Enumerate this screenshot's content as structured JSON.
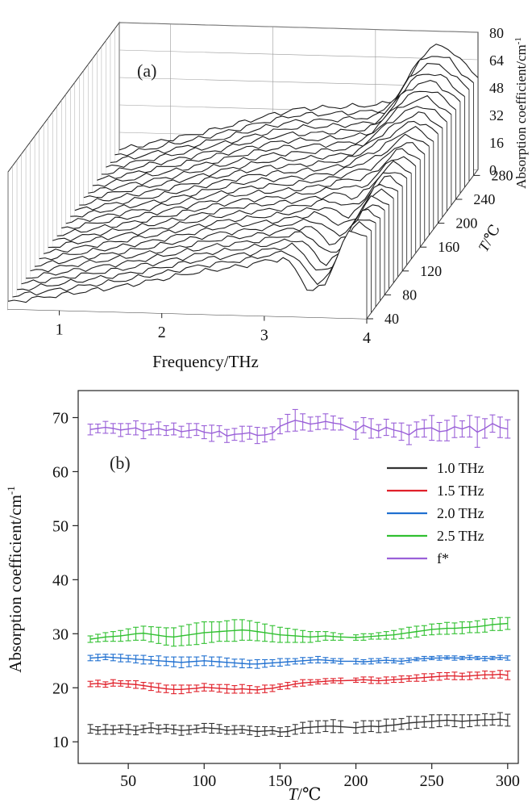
{
  "chart_data": [
    {
      "panel_label": "(a)",
      "type": "waterfall-3d",
      "xlabel": "Frequency/THz",
      "x_ticks": [
        "1",
        "2",
        "3",
        "4"
      ],
      "x_range": [
        0.5,
        4.0
      ],
      "zlabel": "Absorption coefficient/cm",
      "zlabel_sup": "-1",
      "z_ticks": [
        "0",
        "16",
        "32",
        "48",
        "64",
        "80"
      ],
      "z_range": [
        0,
        80
      ],
      "ylabel_main": "T",
      "ylabel_unit": "/℃",
      "y_ticks": [
        "40",
        "80",
        "120",
        "160",
        "200",
        "240",
        "280"
      ],
      "y_range": [
        40,
        290
      ],
      "temperatures": [
        40,
        50,
        60,
        70,
        80,
        90,
        100,
        110,
        120,
        130,
        140,
        150,
        160,
        170,
        180,
        190,
        200,
        210,
        220,
        230,
        240,
        250,
        260,
        270,
        280,
        290
      ],
      "spectrum_shape": {
        "freq": [
          0.5,
          0.8,
          1.0,
          1.3,
          1.6,
          2.0,
          2.3,
          2.6,
          2.8,
          3.0,
          3.1,
          3.2,
          3.3,
          3.45,
          3.6,
          3.75,
          3.85,
          4.0
        ],
        "absorption_back": [
          6,
          10,
          13,
          17,
          22,
          29,
          33,
          34,
          35,
          36,
          37,
          40,
          50,
          66,
          72,
          69,
          62,
          54
        ],
        "absorption_front": [
          4,
          7,
          9,
          12,
          15,
          20,
          24,
          27,
          29,
          32,
          33,
          34,
          28,
          14,
          20,
          42,
          52,
          48
        ]
      }
    },
    {
      "panel_label": "(b)",
      "type": "line",
      "xlabel_main": "T",
      "xlabel_unit": "/℃",
      "ylabel": "Absorption coefficient/cm",
      "ylabel_sup": "-1",
      "x_ticks": [
        50,
        100,
        150,
        200,
        250,
        300
      ],
      "y_ticks": [
        10,
        20,
        30,
        40,
        50,
        60,
        70
      ],
      "xlim": [
        17,
        307
      ],
      "ylim": [
        6,
        75
      ],
      "legend_position": "right",
      "x": [
        25,
        30,
        35,
        40,
        45,
        50,
        55,
        60,
        65,
        70,
        75,
        80,
        85,
        90,
        95,
        100,
        105,
        110,
        115,
        120,
        125,
        130,
        135,
        140,
        145,
        150,
        155,
        160,
        165,
        170,
        175,
        180,
        185,
        190,
        200,
        205,
        210,
        215,
        220,
        225,
        230,
        235,
        240,
        245,
        250,
        255,
        260,
        265,
        270,
        275,
        280,
        285,
        290,
        295,
        300
      ],
      "series": [
        {
          "name": "1.0 THz",
          "color": "#333333",
          "values": [
            12.4,
            12.1,
            12.3,
            12.2,
            12.4,
            12.3,
            12.1,
            12.4,
            12.6,
            12.3,
            12.5,
            12.3,
            12.1,
            12.2,
            12.4,
            12.6,
            12.5,
            12.4,
            12.1,
            12.2,
            12.3,
            12.1,
            11.9,
            12.0,
            12.1,
            11.8,
            11.9,
            12.3,
            12.6,
            12.7,
            12.8,
            12.9,
            12.9,
            12.8,
            12.6,
            12.8,
            12.9,
            12.8,
            13.0,
            13.1,
            13.3,
            13.5,
            13.6,
            13.7,
            13.8,
            13.9,
            14.0,
            13.9,
            13.8,
            13.9,
            14.0,
            14.1,
            14.1,
            14.2,
            14.0
          ],
          "error": [
            0.8,
            0.7,
            0.9,
            0.8,
            0.7,
            0.9,
            0.8,
            0.7,
            0.9,
            0.8,
            0.7,
            0.8,
            0.9,
            0.8,
            0.7,
            0.8,
            0.9,
            0.8,
            0.7,
            0.8,
            0.7,
            0.8,
            0.9,
            0.8,
            0.7,
            0.8,
            0.9,
            0.9,
            1.0,
            1.1,
            1.1,
            1.0,
            1.2,
            1.1,
            1.0,
            1.1,
            1.0,
            1.1,
            1.2,
            1.1,
            1.0,
            1.2,
            1.1,
            1.0,
            1.2,
            1.1,
            1.0,
            1.1,
            1.2,
            1.1,
            1.0,
            1.1,
            1.0,
            1.2,
            1.1
          ]
        },
        {
          "name": "1.5 THz",
          "color": "#e0202a",
          "values": [
            20.7,
            20.8,
            20.6,
            20.9,
            20.8,
            20.7,
            20.6,
            20.4,
            20.2,
            20.0,
            19.8,
            19.7,
            19.7,
            19.8,
            19.9,
            20.1,
            20.0,
            19.9,
            19.8,
            19.7,
            19.8,
            19.7,
            19.6,
            19.8,
            19.9,
            20.2,
            20.4,
            20.7,
            20.9,
            21.0,
            21.1,
            21.2,
            21.3,
            21.3,
            21.4,
            21.5,
            21.4,
            21.3,
            21.4,
            21.5,
            21.6,
            21.7,
            21.8,
            21.9,
            22.0,
            22.1,
            22.2,
            22.2,
            22.1,
            22.2,
            22.3,
            22.4,
            22.4,
            22.5,
            22.3
          ],
          "error": [
            0.5,
            0.6,
            0.5,
            0.6,
            0.5,
            0.6,
            0.7,
            0.6,
            0.7,
            0.8,
            0.7,
            0.8,
            0.8,
            0.7,
            0.6,
            0.7,
            0.6,
            0.7,
            0.8,
            0.7,
            0.8,
            0.7,
            0.6,
            0.7,
            0.6,
            0.5,
            0.6,
            0.5,
            0.6,
            0.5,
            0.4,
            0.5,
            0.4,
            0.5,
            0.4,
            0.5,
            0.6,
            0.5,
            0.6,
            0.5,
            0.6,
            0.5,
            0.6,
            0.7,
            0.6,
            0.7,
            0.6,
            0.7,
            0.6,
            0.7,
            0.6,
            0.7,
            0.6,
            0.7,
            0.8
          ]
        },
        {
          "name": "2.0 THz",
          "color": "#2070d0",
          "values": [
            25.5,
            25.6,
            25.7,
            25.6,
            25.5,
            25.4,
            25.3,
            25.2,
            25.1,
            25.0,
            24.9,
            24.8,
            24.7,
            24.8,
            24.9,
            25.0,
            24.9,
            24.8,
            24.7,
            24.6,
            24.5,
            24.4,
            24.4,
            24.5,
            24.6,
            24.7,
            24.8,
            24.9,
            25.0,
            25.1,
            25.2,
            25.1,
            25.0,
            24.9,
            24.9,
            24.8,
            24.9,
            25.0,
            25.1,
            25.0,
            24.9,
            25.1,
            25.3,
            25.4,
            25.5,
            25.5,
            25.6,
            25.5,
            25.5,
            25.6,
            25.5,
            25.4,
            25.5,
            25.6,
            25.5
          ],
          "error": [
            0.5,
            0.6,
            0.5,
            0.6,
            0.7,
            0.6,
            0.7,
            0.8,
            0.7,
            0.9,
            0.8,
            0.9,
            1.0,
            0.9,
            0.8,
            0.9,
            0.8,
            0.9,
            0.8,
            0.7,
            0.8,
            0.7,
            0.8,
            0.7,
            0.6,
            0.7,
            0.6,
            0.5,
            0.6,
            0.5,
            0.6,
            0.5,
            0.4,
            0.5,
            0.5,
            0.4,
            0.5,
            0.4,
            0.5,
            0.4,
            0.5,
            0.4,
            0.3,
            0.4,
            0.3,
            0.4,
            0.3,
            0.4,
            0.3,
            0.4,
            0.3,
            0.4,
            0.3,
            0.4,
            0.4
          ]
        },
        {
          "name": "2.5 THz",
          "color": "#30c030",
          "values": [
            29.0,
            29.2,
            29.4,
            29.5,
            29.6,
            29.8,
            30.0,
            30.1,
            29.9,
            29.7,
            29.5,
            29.4,
            29.6,
            29.8,
            30.0,
            30.2,
            30.3,
            30.4,
            30.5,
            30.6,
            30.7,
            30.6,
            30.4,
            30.2,
            30.0,
            29.8,
            29.7,
            29.6,
            29.5,
            29.4,
            29.5,
            29.6,
            29.5,
            29.4,
            29.3,
            29.4,
            29.5,
            29.6,
            29.7,
            29.8,
            30.0,
            30.2,
            30.4,
            30.6,
            30.8,
            30.9,
            31.0,
            31.0,
            31.1,
            31.2,
            31.3,
            31.5,
            31.7,
            31.8,
            31.9
          ],
          "error": [
            0.6,
            0.7,
            0.8,
            0.9,
            1.0,
            1.1,
            1.2,
            1.3,
            1.4,
            1.5,
            1.6,
            1.7,
            1.8,
            1.9,
            2.0,
            2.0,
            1.9,
            1.8,
            1.9,
            2.0,
            1.9,
            1.8,
            1.7,
            1.6,
            1.5,
            1.4,
            1.3,
            1.2,
            1.1,
            1.0,
            0.9,
            0.8,
            0.7,
            0.6,
            0.5,
            0.6,
            0.5,
            0.6,
            0.7,
            0.8,
            0.9,
            1.0,
            1.0,
            0.9,
            1.0,
            1.0,
            1.1,
            1.0,
            1.1,
            1.0,
            1.1,
            1.2,
            1.1,
            1.2,
            1.1
          ]
        },
        {
          "name": "f*",
          "color": "#9a60d8",
          "values": [
            67.8,
            68.0,
            68.2,
            68.0,
            67.7,
            67.9,
            68.1,
            67.5,
            67.8,
            68.0,
            67.6,
            67.9,
            67.4,
            67.6,
            67.8,
            67.3,
            67.1,
            67.5,
            66.6,
            66.9,
            67.0,
            67.2,
            66.7,
            66.8,
            67.1,
            68.4,
            69.0,
            69.5,
            69.2,
            68.8,
            69.0,
            69.3,
            69.0,
            68.8,
            67.6,
            68.6,
            68.0,
            67.5,
            68.2,
            67.7,
            67.4,
            66.8,
            67.8,
            68.0,
            68.1,
            67.4,
            67.6,
            68.3,
            67.9,
            68.4,
            67.3,
            68.0,
            68.9,
            68.2,
            67.9
          ],
          "error": [
            1.0,
            0.8,
            1.1,
            0.9,
            1.2,
            1.0,
            1.3,
            1.4,
            1.0,
            1.2,
            0.9,
            1.1,
            1.0,
            1.3,
            1.1,
            1.2,
            1.5,
            1.0,
            1.2,
            1.1,
            1.4,
            1.2,
            1.5,
            1.3,
            1.2,
            1.4,
            1.6,
            2.0,
            1.5,
            1.3,
            1.2,
            1.4,
            1.3,
            1.1,
            1.6,
            1.4,
            1.8,
            1.2,
            1.5,
            1.3,
            1.6,
            1.8,
            1.4,
            1.6,
            2.3,
            1.7,
            1.9,
            2.0,
            1.5,
            2.0,
            2.8,
            1.8,
            1.6,
            1.9,
            1.7
          ]
        }
      ]
    }
  ]
}
